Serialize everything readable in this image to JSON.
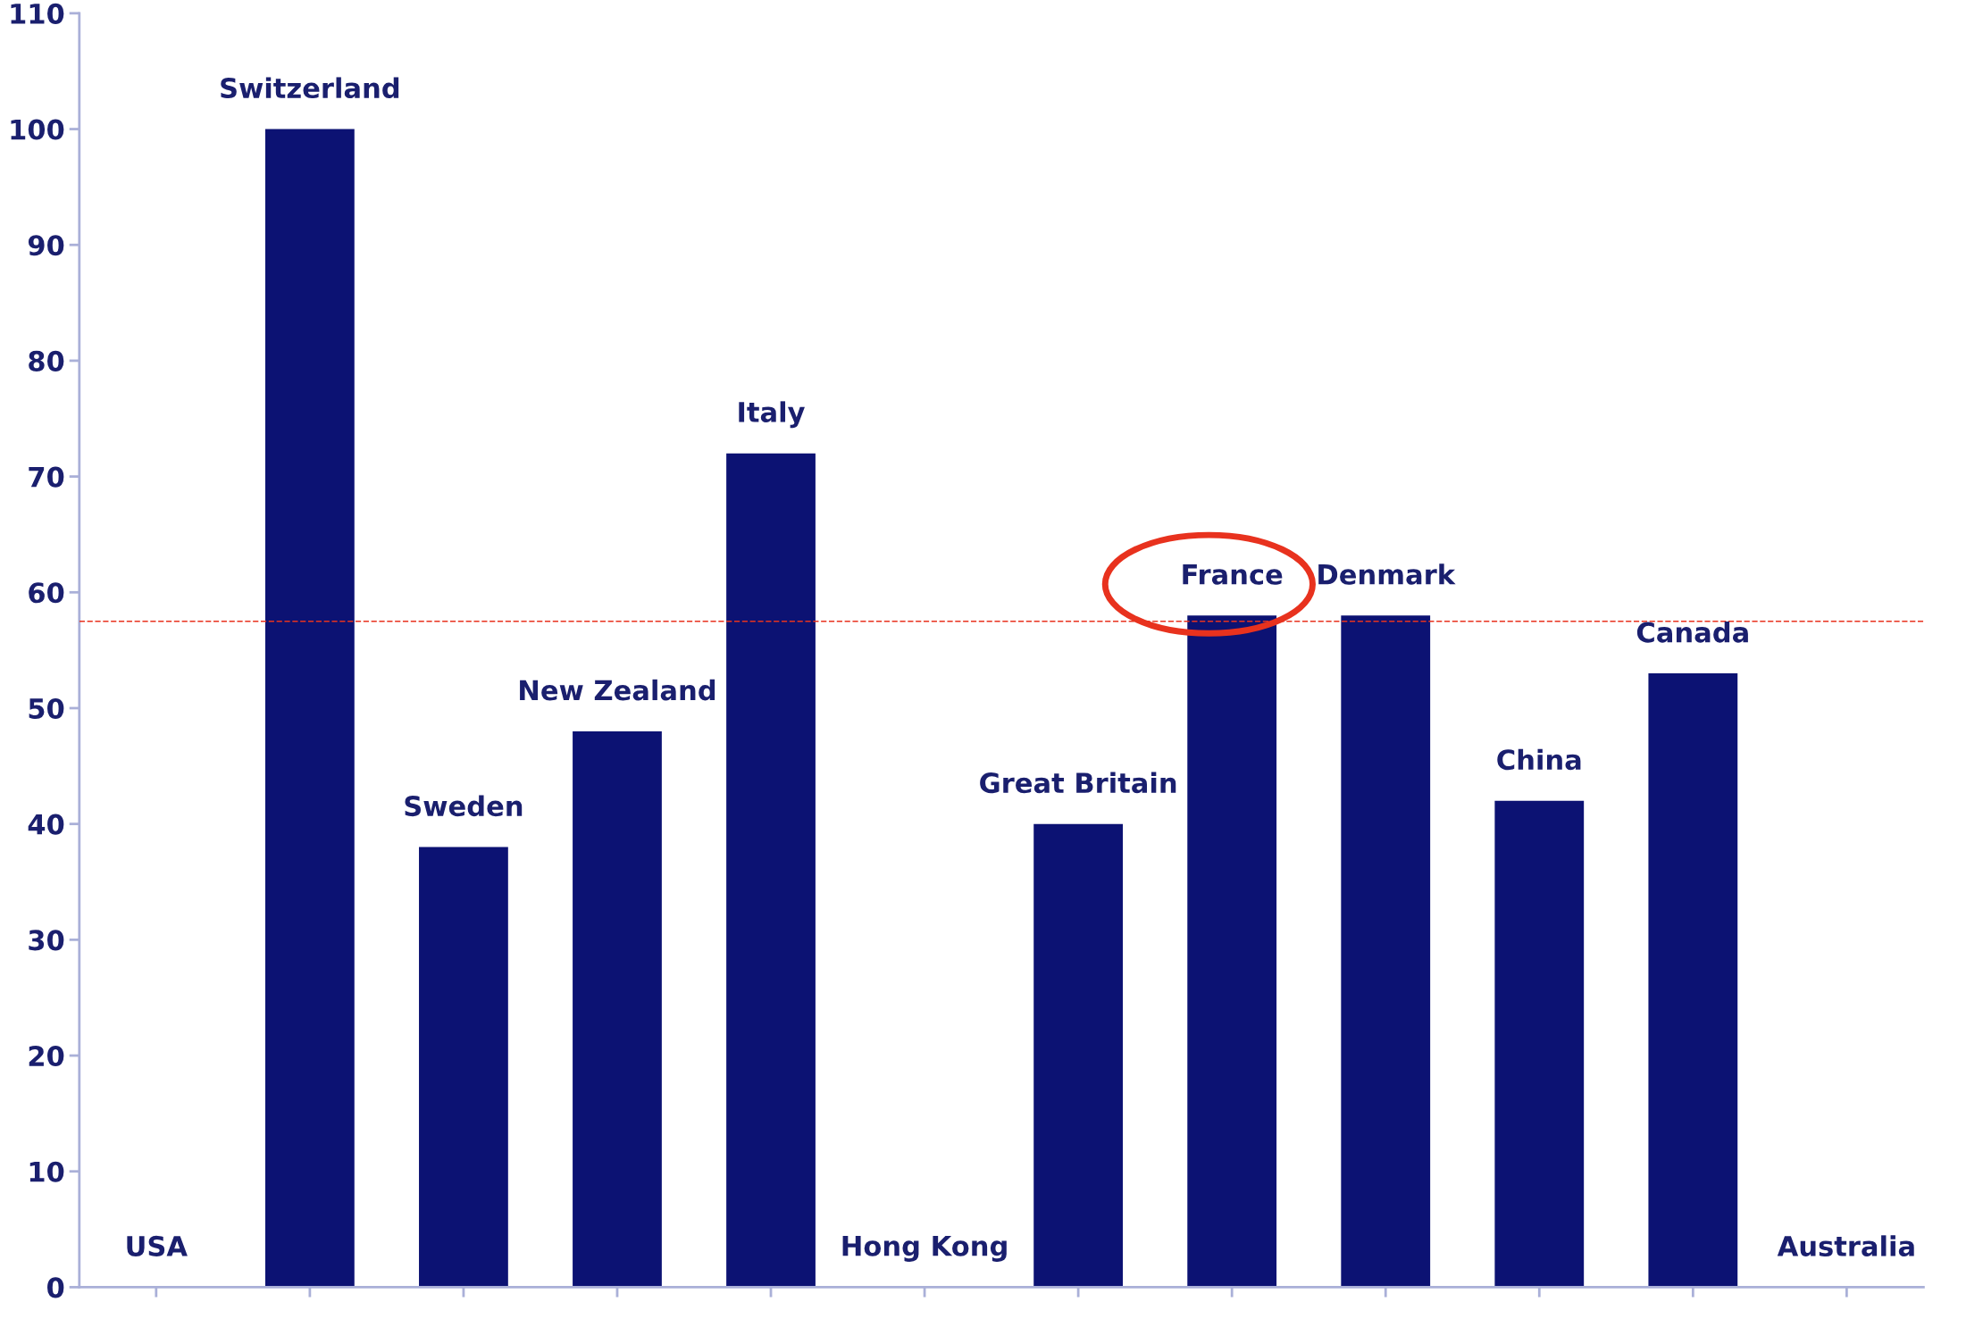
{
  "chart_data": {
    "type": "bar",
    "categories": [
      "USA",
      "Switzerland",
      "Sweden",
      "New Zealand",
      "Italy",
      "Hong Kong",
      "Great Britain",
      "France",
      "Denmark",
      "China",
      "Canada",
      "Australia"
    ],
    "values": [
      0,
      100,
      38,
      48,
      72,
      0,
      40,
      58,
      58,
      42,
      53,
      0
    ],
    "color": "#0c1273",
    "ylim": [
      0,
      110
    ],
    "yticks": [
      0,
      10,
      20,
      30,
      40,
      50,
      60,
      70,
      80,
      90,
      100,
      110
    ],
    "ref_lines": [
      {
        "axis": "y",
        "value": 57.5,
        "color": "#e8321e",
        "line_style": "dashed"
      }
    ],
    "grid": false,
    "legend": false
  }
}
